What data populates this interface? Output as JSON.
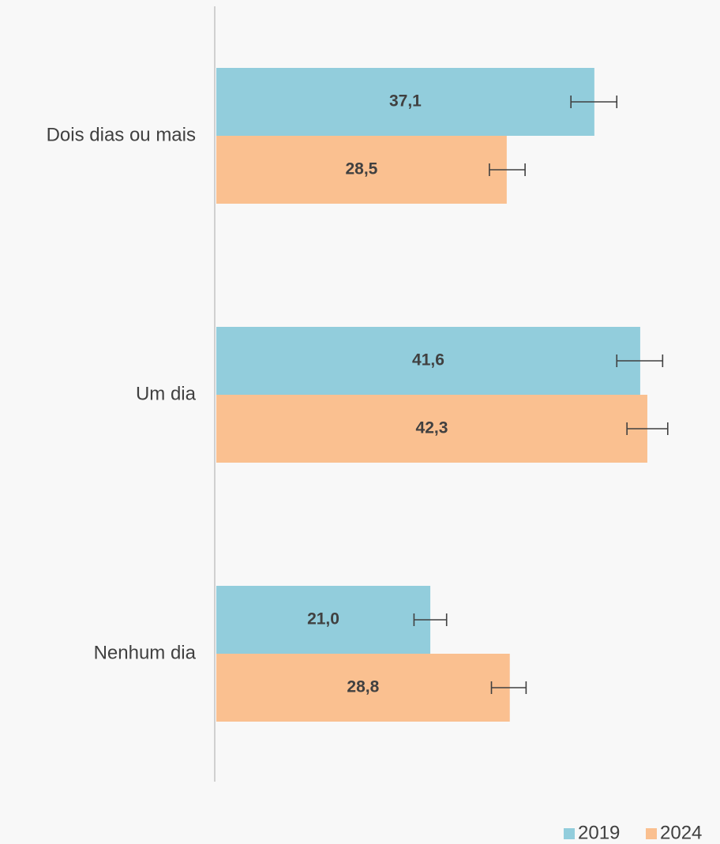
{
  "chart_data": {
    "type": "bar",
    "orientation": "horizontal",
    "title": "",
    "categories": [
      "Dois dias ou mais",
      "Um dia",
      "Nenhum dia"
    ],
    "series": [
      {
        "name": "2019",
        "color": "#92cddc",
        "values": [
          37.1,
          41.6,
          21.0
        ],
        "labels": [
          "37,1",
          "41,6",
          "21,0"
        ],
        "error_low": [
          34.8,
          39.3,
          19.4
        ],
        "error_high": [
          39.3,
          43.8,
          22.6
        ]
      },
      {
        "name": "2024",
        "color": "#fac090",
        "values": [
          28.5,
          42.3,
          28.8
        ],
        "labels": [
          "28,5",
          "42,3",
          "28,8"
        ],
        "error_low": [
          26.8,
          40.3,
          27.0
        ],
        "error_high": [
          30.3,
          44.3,
          30.4
        ]
      }
    ],
    "xlim": [
      0,
      48.5
    ],
    "grid": false,
    "xaxis_visible": false,
    "legend_position": "bottom-right",
    "error_bar_color": "#404040",
    "axis_line_color": "#d0d0d0"
  }
}
